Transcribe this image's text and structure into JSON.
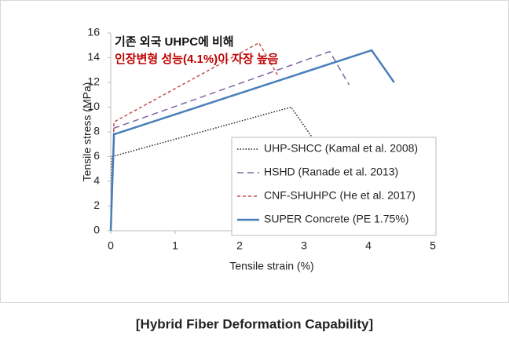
{
  "chart_data": {
    "type": "line",
    "x_label": "Tensile strain (%)",
    "y_label": "Tensile stress (MPa)",
    "xlim": [
      0,
      5
    ],
    "xticks": [
      0,
      1,
      2,
      3,
      4,
      5
    ],
    "ylim": [
      0,
      16
    ],
    "yticks": [
      0,
      2,
      4,
      6,
      8,
      10,
      12,
      14,
      16
    ],
    "series": [
      {
        "name": "UHP-SHCC (Kamal et al. 2008)",
        "color": "#222222",
        "style": "dotted",
        "x": [
          0,
          0.02,
          2.8,
          3.2
        ],
        "values": [
          0,
          6,
          10,
          7
        ]
      },
      {
        "name": "HSHD (Ranade et al. 2013)",
        "color": "#8064a2",
        "style": "dashed",
        "x": [
          0,
          0.05,
          3.4,
          3.7
        ],
        "values": [
          0,
          8.3,
          14.5,
          11.8
        ]
      },
      {
        "name": "CNF-SHUHPC (He et al. 2017)",
        "color": "#c0504d",
        "style": "short-dashed",
        "x": [
          0,
          0.05,
          2.3,
          2.6
        ],
        "values": [
          0,
          8.8,
          15.2,
          12.5
        ]
      },
      {
        "name": "SUPER Concrete (PE 1.75%)",
        "color": "#4a7ebb",
        "style": "solid",
        "x": [
          0,
          0.05,
          4.05,
          4.4
        ],
        "values": [
          0,
          7.8,
          14.6,
          12
        ]
      }
    ],
    "annotations": [
      {
        "text": "기존 외국 UHPC에 비해",
        "color": "#111111"
      },
      {
        "text": "인장변형 성능(4.1%)이 자장 높음",
        "color": "#c00000"
      }
    ],
    "caption": "[Hybrid Fiber Deformation Capability]"
  }
}
